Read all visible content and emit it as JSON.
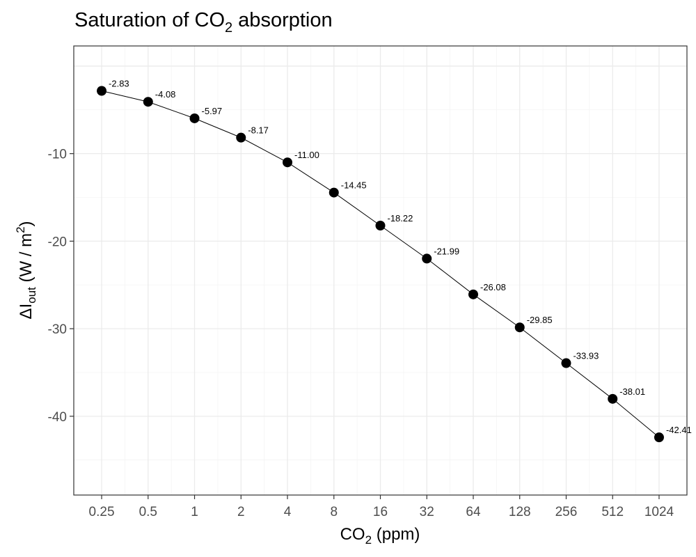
{
  "chart_data": {
    "type": "line",
    "title": {
      "main": "Saturation of CO",
      "sub": "2",
      "rest": " absorption"
    },
    "xlabel": {
      "main": "CO",
      "sub": "2",
      "rest": " (ppm)"
    },
    "ylabel": {
      "delta": "Δ",
      "main": "I",
      "sub": "out",
      "open": " (W / m",
      "sup": "2",
      "close": ")"
    },
    "x_scale": "log2",
    "categories": [
      "0.25",
      "0.5",
      "1",
      "2",
      "4",
      "8",
      "16",
      "32",
      "64",
      "128",
      "256",
      "512",
      "1024"
    ],
    "x": [
      0.25,
      0.5,
      1,
      2,
      4,
      8,
      16,
      32,
      64,
      128,
      256,
      512,
      1024
    ],
    "values": [
      -2.83,
      -4.08,
      -5.97,
      -8.17,
      -11.0,
      -14.45,
      -18.22,
      -21.99,
      -26.08,
      -29.85,
      -33.93,
      -38.01,
      -42.41
    ],
    "data_labels": [
      "-2.83",
      "-4.08",
      "-5.97",
      "-8.17",
      "-11.00",
      "-14.45",
      "-18.22",
      "-21.99",
      "-26.08",
      "-29.85",
      "-33.93",
      "-38.01",
      "-42.41"
    ],
    "y_ticks": [
      -10,
      -20,
      -30,
      -40
    ],
    "y_tick_labels": [
      "-10",
      "-20",
      "-30",
      "-40"
    ],
    "ylim": [
      -49.0,
      2.3
    ],
    "grid": true,
    "legend": "none",
    "colors": {
      "point": "#000000",
      "line": "#000000",
      "grid": "#ebebeb",
      "border": "#333333"
    }
  }
}
